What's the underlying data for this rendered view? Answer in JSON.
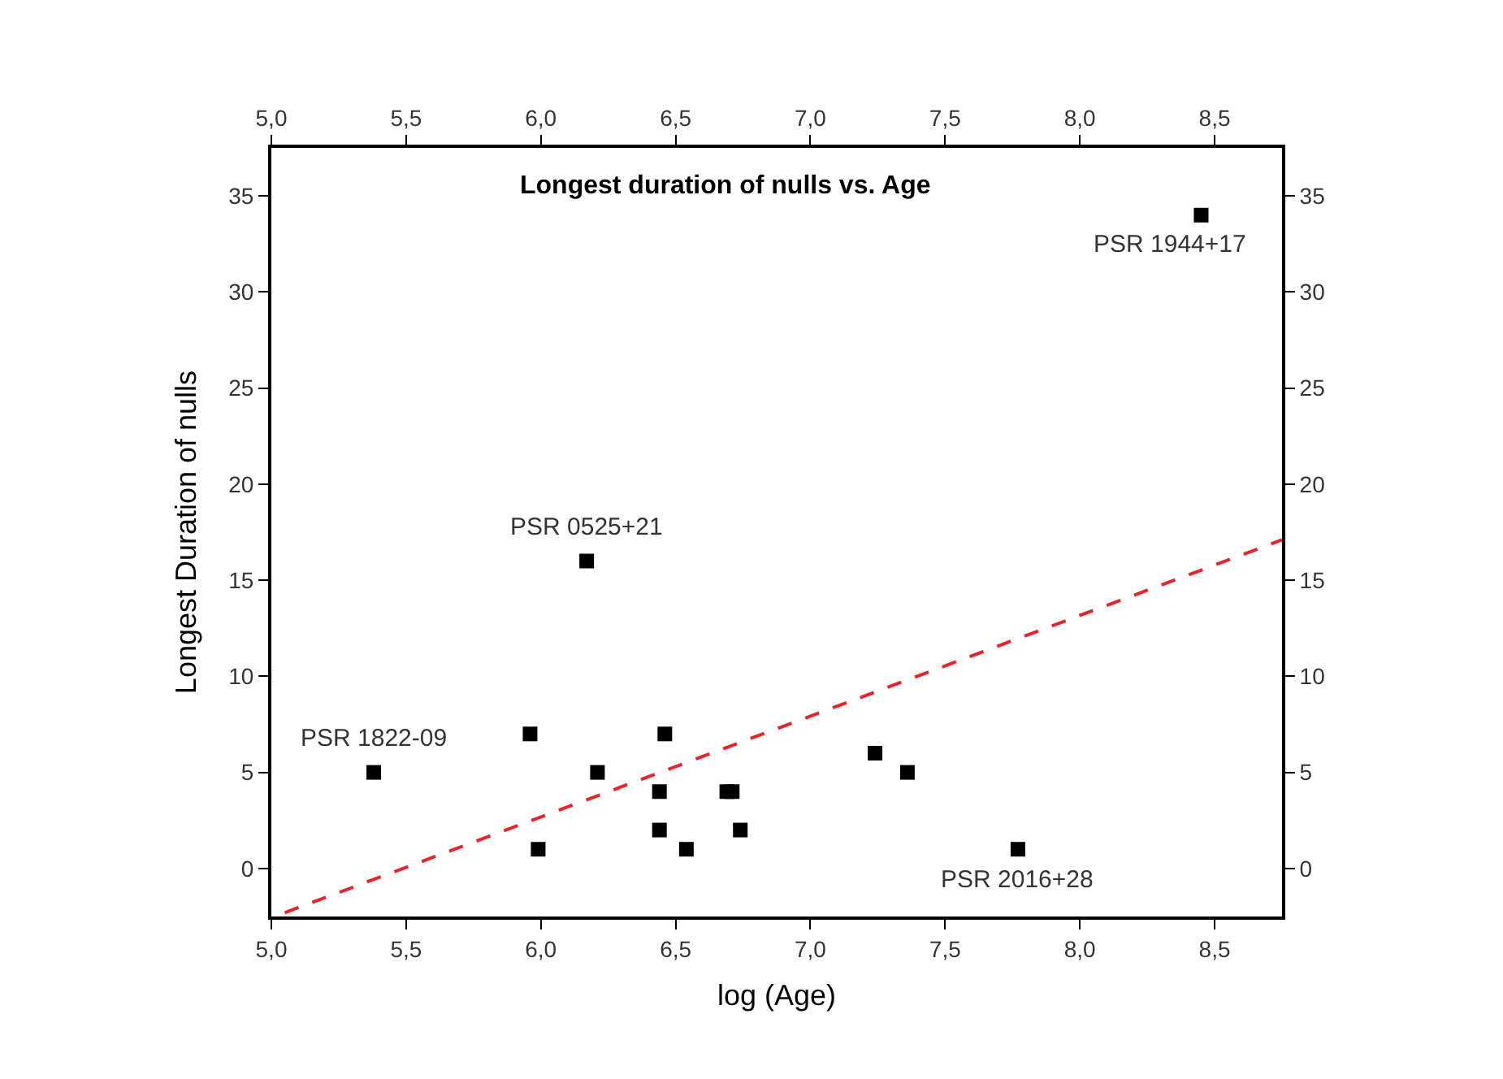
{
  "chart_data": {
    "type": "scatter",
    "title": "Longest duration of nulls vs. Age",
    "xlabel": "log (Age)",
    "ylabel": "Longest Duration of nulls",
    "xlim": [
      5.0,
      8.75
    ],
    "xticks": [
      {
        "value": 5.0,
        "label": "5,0"
      },
      {
        "value": 5.5,
        "label": "5,5"
      },
      {
        "value": 6.0,
        "label": "6,0"
      },
      {
        "value": 6.5,
        "label": "6,5"
      },
      {
        "value": 7.0,
        "label": "7,0"
      },
      {
        "value": 7.5,
        "label": "7,5"
      },
      {
        "value": 8.0,
        "label": "8,0"
      },
      {
        "value": 8.5,
        "label": "8,5"
      }
    ],
    "x2lim": [
      5.0,
      8.75
    ],
    "x2ticks": [
      {
        "value": 5.0,
        "label": "5,0"
      },
      {
        "value": 5.5,
        "label": "5,5"
      },
      {
        "value": 6.0,
        "label": "6,0"
      },
      {
        "value": 6.5,
        "label": "6,5"
      },
      {
        "value": 7.0,
        "label": "7,0"
      },
      {
        "value": 7.5,
        "label": "7,5"
      },
      {
        "value": 8.0,
        "label": "8,0"
      },
      {
        "value": 8.5,
        "label": "8,5"
      }
    ],
    "ylim": [
      -2.5,
      37.5
    ],
    "yticks": [
      0,
      5,
      10,
      15,
      20,
      25,
      30,
      35
    ],
    "y2lim": [
      -2.5,
      37.5
    ],
    "y2ticks": [
      0,
      5,
      10,
      15,
      20,
      25,
      30,
      35
    ],
    "series": [
      {
        "color": "#000000",
        "marker": "square",
        "x": [
          5.38,
          5.96,
          5.99,
          6.17,
          6.21,
          6.44,
          6.44,
          6.46,
          6.54,
          6.69,
          6.71,
          6.74,
          7.24,
          7.36,
          7.77,
          8.45
        ],
        "values": [
          5,
          7,
          1,
          16,
          5,
          4,
          2,
          7,
          1,
          4,
          4,
          2,
          6,
          5,
          1,
          34
        ]
      },
      {
        "type": "line",
        "color": "#e8242a",
        "line_style": "dashed",
        "marker": "none",
        "x": [
          5.05,
          8.75
        ],
        "values": [
          -2.3,
          17.1
        ]
      }
    ],
    "annotations": [
      {
        "text": "PSR 1822-09",
        "x": 5.38,
        "y": 5
      },
      {
        "text": "PSR 0525+21",
        "x": 6.17,
        "y": 16
      },
      {
        "text": "PSR 1944+17",
        "x": 8.45,
        "y": 34
      },
      {
        "text": "PSR 2016+28",
        "x": 7.77,
        "y": 1
      }
    ]
  }
}
